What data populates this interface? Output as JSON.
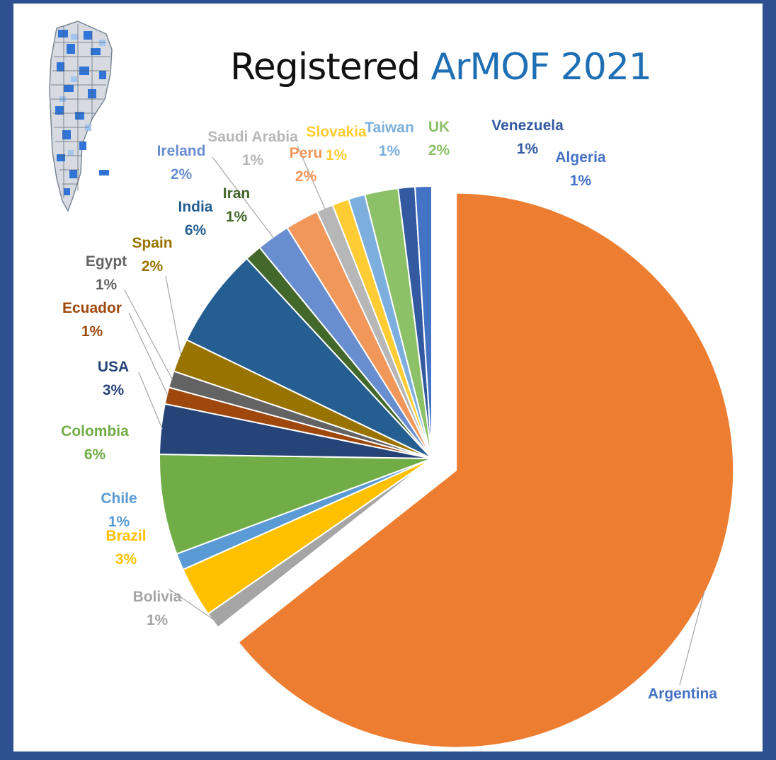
{
  "chart_data": {
    "type": "pie",
    "title_part1": "Registered",
    "title_part2": "ArMOF 2021",
    "slices": [
      {
        "name": "Argentina",
        "value": 65,
        "label": "Argentina",
        "color": "#ed7d31"
      },
      {
        "name": "Bolivia",
        "value": 1,
        "label": "1%",
        "color": "#a5a5a5"
      },
      {
        "name": "Brazil",
        "value": 3,
        "label": "3%",
        "color": "#ffc000"
      },
      {
        "name": "Chile",
        "value": 1,
        "label": "1%",
        "color": "#5b9bd5"
      },
      {
        "name": "Colombia",
        "value": 6,
        "label": "6%",
        "color": "#70ad47"
      },
      {
        "name": "USA",
        "value": 3,
        "label": "3%",
        "color": "#264478"
      },
      {
        "name": "Ecuador",
        "value": 1,
        "label": "1%",
        "color": "#9e480e"
      },
      {
        "name": "Egypt",
        "value": 1,
        "label": "1%",
        "color": "#636363"
      },
      {
        "name": "Spain",
        "value": 2,
        "label": "2%",
        "color": "#997300"
      },
      {
        "name": "India",
        "value": 6,
        "label": "6%",
        "color": "#255e91"
      },
      {
        "name": "Iran",
        "value": 1,
        "label": "1%",
        "color": "#43682b"
      },
      {
        "name": "Ireland",
        "value": 2,
        "label": "2%",
        "color": "#698ed0"
      },
      {
        "name": "Peru",
        "value": 2,
        "label": "2%",
        "color": "#f1975a"
      },
      {
        "name": "Saudi Arabia",
        "value": 1,
        "label": "1%",
        "color": "#b7b7b7"
      },
      {
        "name": "Slovakia",
        "value": 1,
        "label": "1%",
        "color": "#ffcd33"
      },
      {
        "name": "Taiwan",
        "value": 1,
        "label": "1%",
        "color": "#7cafdd"
      },
      {
        "name": "UK",
        "value": 2,
        "label": "2%",
        "color": "#8cc168"
      },
      {
        "name": "Venezuela",
        "value": 1,
        "label": "1%",
        "color": "#335aa1"
      },
      {
        "name": "Algeria",
        "value": 1,
        "label": "1%",
        "color": "#4472c4"
      }
    ]
  }
}
